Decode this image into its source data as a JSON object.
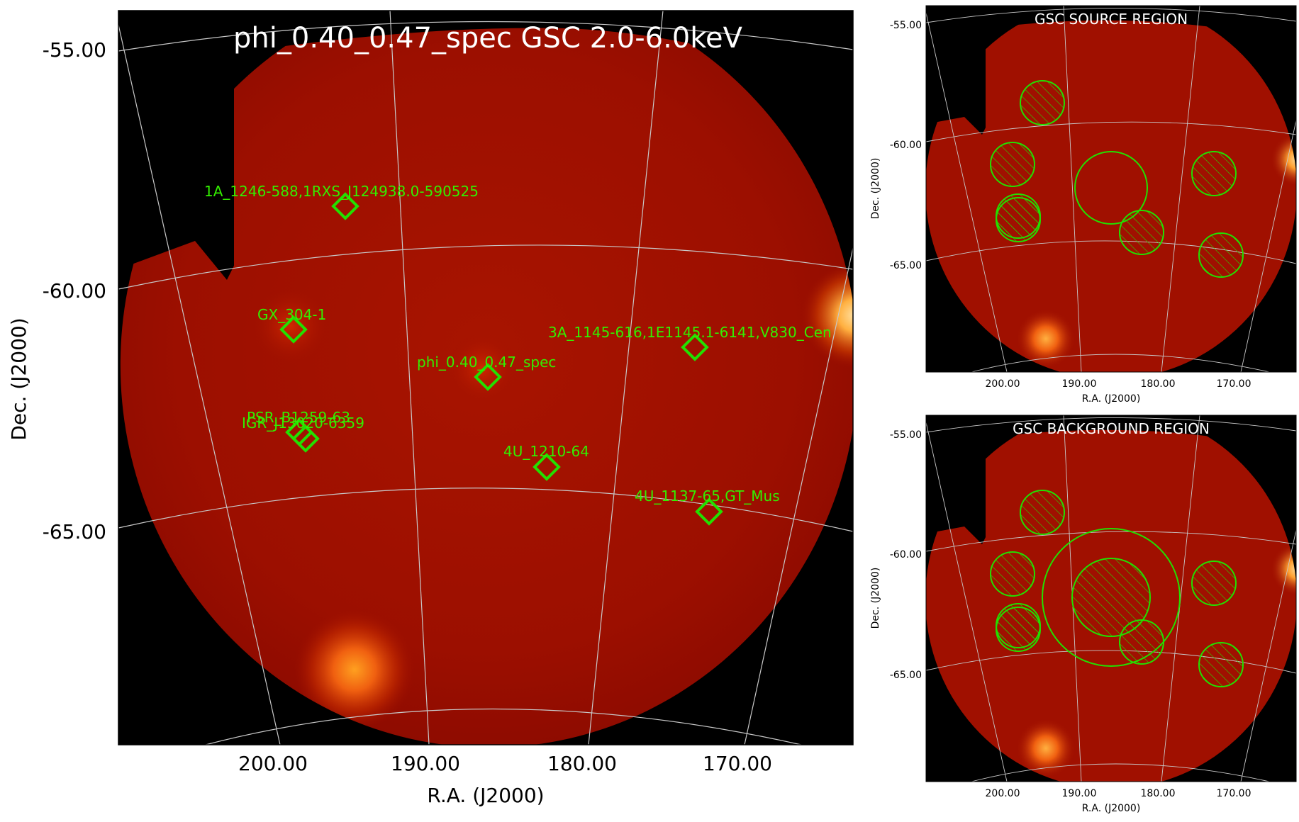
{
  "main": {
    "title": "phi_0.40_0.47_spec GSC 2.0-6.0keV",
    "xlabel": "R.A. (J2000)",
    "ylabel": "Dec. (J2000)",
    "xticks": [
      "200.00",
      "190.00",
      "180.00",
      "170.00"
    ],
    "yticks": [
      "-55.00",
      "-60.00",
      "-65.00"
    ],
    "sources": [
      {
        "label": "1A_1246-588,1RXS_J124938.0-590525"
      },
      {
        "label": "GX_304-1"
      },
      {
        "label": "3A_1145-616,1E1145.1-6141,V830_Cen"
      },
      {
        "label": "phi_0.40_0.47_spec"
      },
      {
        "label": "PSR_B1259-63"
      },
      {
        "label": "IGR_J13020-6359"
      },
      {
        "label": "4U_1210-64"
      },
      {
        "label": "4U_1137-65,GT_Mus"
      }
    ]
  },
  "source_region": {
    "title": "GSC SOURCE REGION",
    "xlabel": "R.A. (J2000)",
    "ylabel": "Dec. (J2000)",
    "xticks": [
      "200.00",
      "190.00",
      "180.00",
      "170.00"
    ],
    "yticks": [
      "-55.00",
      "-60.00",
      "-65.00"
    ]
  },
  "background_region": {
    "title": "GSC BACKGROUND REGION",
    "xlabel": "R.A. (J2000)",
    "ylabel": "Dec. (J2000)",
    "xticks": [
      "200.00",
      "190.00",
      "180.00",
      "170.00"
    ],
    "yticks": [
      "-55.00",
      "-60.00",
      "-65.00"
    ]
  },
  "colors": {
    "marker": "#22e000",
    "label": "#33ee00",
    "field": "#a01000",
    "grid": "#c8c8c8",
    "sky": "#000000"
  }
}
